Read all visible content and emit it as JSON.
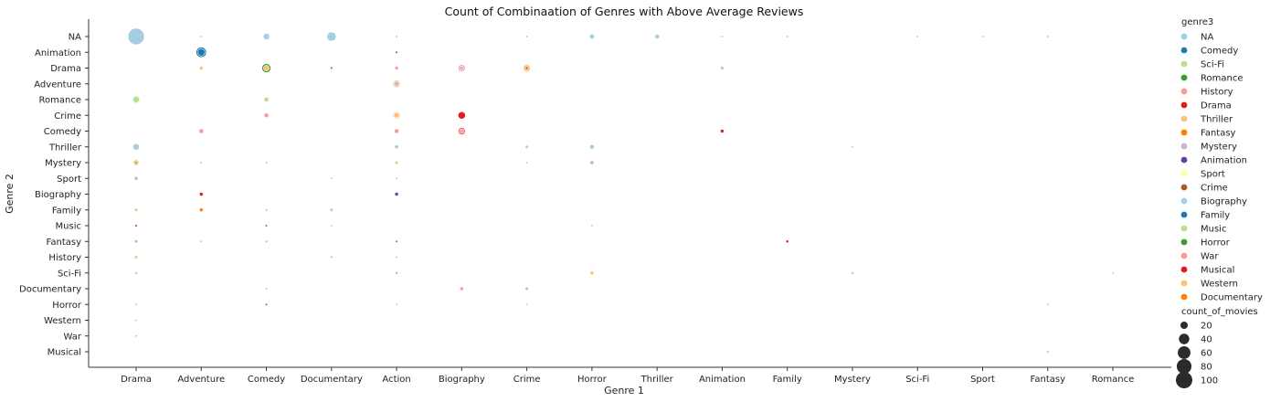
{
  "chart_data": {
    "type": "scatter",
    "title": "Count of Combinaation of Genres with Above Average Reviews",
    "xlabel": "Genre 1",
    "ylabel": "Genre 2",
    "x_categories": [
      "Drama",
      "Adventure",
      "Comedy",
      "Documentary",
      "Action",
      "Biography",
      "Crime",
      "Horror",
      "Thriller",
      "Animation",
      "Family",
      "Mystery",
      "Sci-Fi",
      "Sport",
      "Fantasy",
      "Romance"
    ],
    "y_categories": [
      "NA",
      "Animation",
      "Drama",
      "Adventure",
      "Romance",
      "Crime",
      "Comedy",
      "Thriller",
      "Mystery",
      "Sport",
      "Biography",
      "Family",
      "Music",
      "Fantasy",
      "History",
      "Sci-Fi",
      "Documentary",
      "Horror",
      "Western",
      "War",
      "Musical"
    ],
    "hue_title": "genre3",
    "hue_levels": [
      {
        "name": "NA",
        "color": "#a6cee3"
      },
      {
        "name": "Comedy",
        "color": "#1f78b4"
      },
      {
        "name": "Sci-Fi",
        "color": "#b2df8a"
      },
      {
        "name": "Romance",
        "color": "#33a02c"
      },
      {
        "name": "History",
        "color": "#fb9a99"
      },
      {
        "name": "Drama",
        "color": "#e31a1c"
      },
      {
        "name": "Thriller",
        "color": "#fdbf6f"
      },
      {
        "name": "Fantasy",
        "color": "#ff7f00"
      },
      {
        "name": "Mystery",
        "color": "#cab2d6"
      },
      {
        "name": "Animation",
        "color": "#6a3d9a"
      },
      {
        "name": "Sport",
        "color": "#ffff99"
      },
      {
        "name": "Crime",
        "color": "#b15928"
      },
      {
        "name": "Biography",
        "color": "#a6cee3"
      },
      {
        "name": "Family",
        "color": "#1f78b4"
      },
      {
        "name": "Music",
        "color": "#b2df8a"
      },
      {
        "name": "Horror",
        "color": "#33a02c"
      },
      {
        "name": "War",
        "color": "#fb9a99"
      },
      {
        "name": "Musical",
        "color": "#e31a1c"
      },
      {
        "name": "Western",
        "color": "#fdbf6f"
      },
      {
        "name": "Documentary",
        "color": "#ff7f00"
      }
    ],
    "size_title": "count_of_movies",
    "size_legend": [
      20,
      40,
      60,
      80,
      100
    ],
    "points": [
      {
        "x": "Drama",
        "y": "NA",
        "genre3": "NA",
        "count": 100
      },
      {
        "x": "Adventure",
        "y": "NA",
        "genre3": "NA",
        "count": 2
      },
      {
        "x": "Comedy",
        "y": "NA",
        "genre3": "NA",
        "count": 15
      },
      {
        "x": "Documentary",
        "y": "NA",
        "genre3": "NA",
        "count": 32
      },
      {
        "x": "Action",
        "y": "NA",
        "genre3": "NA",
        "count": 2
      },
      {
        "x": "Crime",
        "y": "NA",
        "genre3": "NA",
        "count": 2
      },
      {
        "x": "Horror",
        "y": "NA",
        "genre3": "NA",
        "count": 9
      },
      {
        "x": "Thriller",
        "y": "NA",
        "genre3": "NA",
        "count": 8
      },
      {
        "x": "Animation",
        "y": "NA",
        "genre3": "NA",
        "count": 2
      },
      {
        "x": "Family",
        "y": "NA",
        "genre3": "NA",
        "count": 2
      },
      {
        "x": "Sci-Fi",
        "y": "NA",
        "genre3": "NA",
        "count": 2
      },
      {
        "x": "Sport",
        "y": "NA",
        "genre3": "NA",
        "count": 2
      },
      {
        "x": "Fantasy",
        "y": "NA",
        "genre3": "NA",
        "count": 2
      },
      {
        "x": "Adventure",
        "y": "Animation",
        "genre3": "Comedy",
        "count": 40
      },
      {
        "x": "Adventure",
        "y": "Animation",
        "genre3": "Family",
        "count": 20
      },
      {
        "x": "Action",
        "y": "Animation",
        "genre3": "Comedy",
        "count": 2
      },
      {
        "x": "Adventure",
        "y": "Drama",
        "genre3": "Thriller",
        "count": 5
      },
      {
        "x": "Comedy",
        "y": "Drama",
        "genre3": "Romance",
        "count": 30
      },
      {
        "x": "Comedy",
        "y": "Drama",
        "genre3": "Thriller",
        "count": 12
      },
      {
        "x": "Documentary",
        "y": "Drama",
        "genre3": "Family",
        "count": 2
      },
      {
        "x": "Action",
        "y": "Drama",
        "genre3": "History",
        "count": 5
      },
      {
        "x": "Biography",
        "y": "Drama",
        "genre3": "History",
        "count": 18
      },
      {
        "x": "Biography",
        "y": "Drama",
        "genre3": "Mystery",
        "count": 6
      },
      {
        "x": "Crime",
        "y": "Drama",
        "genre3": "Thriller",
        "count": 18
      },
      {
        "x": "Crime",
        "y": "Drama",
        "genre3": "Crime",
        "count": 3
      },
      {
        "x": "Animation",
        "y": "Drama",
        "genre3": "Mystery",
        "count": 4
      },
      {
        "x": "Action",
        "y": "Adventure",
        "genre3": "Thriller",
        "count": 20
      },
      {
        "x": "Action",
        "y": "Adventure",
        "genre3": "Mystery",
        "count": 8
      },
      {
        "x": "Drama",
        "y": "Romance",
        "genre3": "NA",
        "count": 22
      },
      {
        "x": "Drama",
        "y": "Romance",
        "genre3": "Music",
        "count": 14
      },
      {
        "x": "Comedy",
        "y": "Romance",
        "genre3": "Music",
        "count": 8
      },
      {
        "x": "Comedy",
        "y": "Crime",
        "genre3": "History",
        "count": 8
      },
      {
        "x": "Action",
        "y": "Crime",
        "genre3": "History",
        "count": 18
      },
      {
        "x": "Action",
        "y": "Crime",
        "genre3": "Thriller",
        "count": 10
      },
      {
        "x": "Biography",
        "y": "Crime",
        "genre3": "Drama",
        "count": 20
      },
      {
        "x": "Adventure",
        "y": "Comedy",
        "genre3": "War",
        "count": 8
      },
      {
        "x": "Action",
        "y": "Comedy",
        "genre3": "History",
        "count": 8
      },
      {
        "x": "Biography",
        "y": "Comedy",
        "genre3": "Drama",
        "count": 18
      },
      {
        "x": "Biography",
        "y": "Comedy",
        "genre3": "History",
        "count": 8
      },
      {
        "x": "Animation",
        "y": "Comedy",
        "genre3": "Musical",
        "count": 5
      },
      {
        "x": "Drama",
        "y": "Thriller",
        "genre3": "Biography",
        "count": 16
      },
      {
        "x": "Action",
        "y": "Thriller",
        "genre3": "NA",
        "count": 6
      },
      {
        "x": "Crime",
        "y": "Thriller",
        "genre3": "Biography",
        "count": 4
      },
      {
        "x": "Horror",
        "y": "Thriller",
        "genre3": "NA",
        "count": 8
      },
      {
        "x": "Mystery",
        "y": "Thriller",
        "genre3": "Biography",
        "count": 2
      },
      {
        "x": "Drama",
        "y": "Mystery",
        "genre3": "Thriller",
        "count": 12
      },
      {
        "x": "Drama",
        "y": "Mystery",
        "genre3": "Romance",
        "count": 2
      },
      {
        "x": "Adventure",
        "y": "Mystery",
        "genre3": "Music",
        "count": 2
      },
      {
        "x": "Comedy",
        "y": "Mystery",
        "genre3": "Biography",
        "count": 2
      },
      {
        "x": "Action",
        "y": "Mystery",
        "genre3": "Sci-Fi",
        "count": 4
      },
      {
        "x": "Crime",
        "y": "Mystery",
        "genre3": "Thriller",
        "count": 2
      },
      {
        "x": "Horror",
        "y": "Mystery",
        "genre3": "Mystery",
        "count": 6
      },
      {
        "x": "Drama",
        "y": "Sport",
        "genre3": "NA",
        "count": 6
      },
      {
        "x": "Documentary",
        "y": "Sport",
        "genre3": "Biography",
        "count": 2
      },
      {
        "x": "Action",
        "y": "Sport",
        "genre3": "NA",
        "count": 2
      },
      {
        "x": "Adventure",
        "y": "Biography",
        "genre3": "Drama",
        "count": 5
      },
      {
        "x": "Action",
        "y": "Biography",
        "genre3": "Animation",
        "count": 5
      },
      {
        "x": "Drama",
        "y": "Family",
        "genre3": "Thriller",
        "count": 4
      },
      {
        "x": "Adventure",
        "y": "Family",
        "genre3": "Fantasy",
        "count": 5
      },
      {
        "x": "Comedy",
        "y": "Family",
        "genre3": "Mystery",
        "count": 2
      },
      {
        "x": "Documentary",
        "y": "Family",
        "genre3": "Biography",
        "count": 4
      },
      {
        "x": "Biography",
        "y": "Family",
        "genre3": "Sport",
        "count": 2
      },
      {
        "x": "Drama",
        "y": "Music",
        "genre3": "Drama",
        "count": 2
      },
      {
        "x": "Comedy",
        "y": "Music",
        "genre3": "Horror",
        "count": 2
      },
      {
        "x": "Documentary",
        "y": "Music",
        "genre3": "Music",
        "count": 2
      },
      {
        "x": "Horror",
        "y": "Music",
        "genre3": "Thriller",
        "count": 2
      },
      {
        "x": "Drama",
        "y": "Fantasy",
        "genre3": "Mystery",
        "count": 4
      },
      {
        "x": "Adventure",
        "y": "Fantasy",
        "genre3": "Biography",
        "count": 2
      },
      {
        "x": "Comedy",
        "y": "Fantasy",
        "genre3": "Music",
        "count": 3
      },
      {
        "x": "Action",
        "y": "Fantasy",
        "genre3": "Horror",
        "count": 2
      },
      {
        "x": "Family",
        "y": "Fantasy",
        "genre3": "Drama",
        "count": 3
      },
      {
        "x": "Drama",
        "y": "History",
        "genre3": "Thriller",
        "count": 4
      },
      {
        "x": "Documentary",
        "y": "History",
        "genre3": "War",
        "count": 2
      },
      {
        "x": "Action",
        "y": "History",
        "genre3": "Biography",
        "count": 2
      },
      {
        "x": "Drama",
        "y": "Sci-Fi",
        "genre3": "Thriller",
        "count": 3
      },
      {
        "x": "Action",
        "y": "Sci-Fi",
        "genre3": "Mystery",
        "count": 3
      },
      {
        "x": "Horror",
        "y": "Sci-Fi",
        "genre3": "Thriller",
        "count": 5
      },
      {
        "x": "Mystery",
        "y": "Sci-Fi",
        "genre3": "Thriller",
        "count": 3
      },
      {
        "x": "Romance",
        "y": "Sci-Fi",
        "genre3": "Thriller",
        "count": 2
      },
      {
        "x": "Comedy",
        "y": "Documentary",
        "genre3": "Biography",
        "count": 2
      },
      {
        "x": "Biography",
        "y": "Documentary",
        "genre3": "History",
        "count": 5
      },
      {
        "x": "Crime",
        "y": "Documentary",
        "genre3": "Mystery",
        "count": 4
      },
      {
        "x": "Drama",
        "y": "Horror",
        "genre3": "Thriller",
        "count": 2
      },
      {
        "x": "Comedy",
        "y": "Horror",
        "genre3": "Horror",
        "count": 2
      },
      {
        "x": "Action",
        "y": "Horror",
        "genre3": "Thriller",
        "count": 2
      },
      {
        "x": "Crime",
        "y": "Horror",
        "genre3": "Thriller",
        "count": 2
      },
      {
        "x": "Fantasy",
        "y": "Horror",
        "genre3": "Thriller",
        "count": 2
      },
      {
        "x": "Drama",
        "y": "Western",
        "genre3": "NA",
        "count": 2
      },
      {
        "x": "Drama",
        "y": "War",
        "genre3": "Biography",
        "count": 2
      },
      {
        "x": "Fantasy",
        "y": "Musical",
        "genre3": "Mystery",
        "count": 2
      }
    ]
  }
}
